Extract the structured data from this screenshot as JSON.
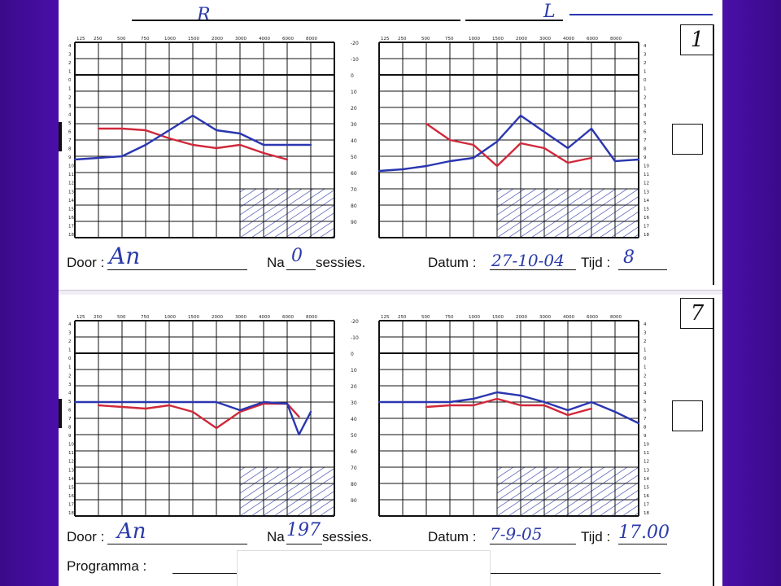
{
  "side_labels": {
    "top": "R",
    "top_right": "L"
  },
  "colors": {
    "right_ear": "#d0283a",
    "left_ear": "#2a36b0",
    "hatch": "#3a4ab0"
  },
  "frequencies": [
    "125",
    "250",
    "500",
    "750",
    "1000",
    "1500",
    "2000",
    "3000",
    "4000",
    "6000",
    "8000"
  ],
  "db_scale": [
    "-20",
    "-10",
    "0",
    "10",
    "20",
    "30",
    "40",
    "50",
    "60",
    "70",
    "80",
    "90"
  ],
  "hearing_scale": [
    "4",
    "3",
    "2",
    "1",
    "0",
    "1",
    "2",
    "3",
    "4",
    "5",
    "6",
    "7",
    "8",
    "9",
    "10",
    "11",
    "12",
    "13",
    "14",
    "15",
    "16",
    "17",
    "18"
  ],
  "cards": [
    {
      "number": "1",
      "door_label": "Door :",
      "door_value": "An",
      "na_label": "Na",
      "na_value": "0",
      "sessies_label": "sessies.",
      "datum_label": "Datum :",
      "datum_value": "27-10-04",
      "tijd_label": "Tijd :",
      "tijd_value": "8",
      "charts": [
        {
          "side": "right",
          "red": [
            [
              1,
              5.3
            ],
            [
              2,
              5.3
            ],
            [
              3,
              5.4
            ],
            [
              4,
              5.9
            ],
            [
              5,
              6.3
            ],
            [
              6,
              6.5
            ],
            [
              7,
              6.3
            ],
            [
              8,
              6.8
            ],
            [
              9,
              7.2
            ]
          ],
          "blue": [
            [
              0,
              7.2
            ],
            [
              1,
              7.1
            ],
            [
              2,
              7.0
            ],
            [
              3,
              6.3
            ],
            [
              4,
              5.4
            ],
            [
              5,
              4.5
            ],
            [
              6,
              5.4
            ],
            [
              7,
              5.6
            ],
            [
              8,
              6.3
            ],
            [
              9,
              6.3
            ],
            [
              10,
              6.3
            ]
          ]
        },
        {
          "side": "left",
          "red": [
            [
              2,
              5.0
            ],
            [
              3,
              6.0
            ],
            [
              4,
              6.3
            ],
            [
              5,
              7.6
            ],
            [
              6,
              6.2
            ],
            [
              7,
              6.5
            ],
            [
              8,
              7.4
            ],
            [
              9,
              7.1
            ]
          ],
          "blue": [
            [
              0,
              7.9
            ],
            [
              1,
              7.8
            ],
            [
              2,
              7.6
            ],
            [
              3,
              7.3
            ],
            [
              4,
              7.1
            ],
            [
              5,
              6.1
            ],
            [
              6,
              4.5
            ],
            [
              7,
              5.5
            ],
            [
              8,
              6.5
            ],
            [
              9,
              5.3
            ],
            [
              10,
              7.3
            ],
            [
              11,
              7.2
            ]
          ]
        }
      ]
    },
    {
      "number": "7",
      "door_label": "Door :",
      "door_value": "An",
      "na_label": "Na",
      "na_value": "197",
      "sessies_label": "sessies.",
      "datum_label": "Datum :",
      "datum_value": "7-9-05",
      "tijd_label": "Tijd :",
      "tijd_value": "17.00",
      "programma_label": "Programma :",
      "charts": [
        {
          "side": "right",
          "red": [
            [
              1,
              5.2
            ],
            [
              2,
              5.3
            ],
            [
              3,
              5.4
            ],
            [
              4,
              5.2
            ],
            [
              5,
              5.6
            ],
            [
              6,
              6.6
            ],
            [
              7,
              5.6
            ],
            [
              8,
              5.1
            ],
            [
              9,
              5.1
            ],
            [
              9.5,
              5.9
            ]
          ],
          "blue": [
            [
              0,
              5.0
            ],
            [
              1,
              5.0
            ],
            [
              2,
              5.0
            ],
            [
              3,
              5.0
            ],
            [
              4,
              5.0
            ],
            [
              5,
              5.0
            ],
            [
              6,
              5.0
            ],
            [
              7,
              5.5
            ],
            [
              8,
              5.0
            ],
            [
              9,
              5.1
            ],
            [
              9.5,
              7.0
            ],
            [
              10,
              5.6
            ]
          ]
        },
        {
          "side": "left",
          "red": [
            [
              2,
              5.3
            ],
            [
              3,
              5.2
            ],
            [
              4,
              5.2
            ],
            [
              5,
              4.8
            ],
            [
              6,
              5.2
            ],
            [
              7,
              5.2
            ],
            [
              8,
              5.8
            ],
            [
              9,
              5.4
            ]
          ],
          "blue": [
            [
              0,
              5.0
            ],
            [
              1,
              5.0
            ],
            [
              2,
              5.0
            ],
            [
              3,
              5.0
            ],
            [
              4,
              4.8
            ],
            [
              5,
              4.4
            ],
            [
              6,
              4.6
            ],
            [
              7,
              5.0
            ],
            [
              8,
              5.5
            ],
            [
              9,
              5.0
            ],
            [
              10,
              5.6
            ],
            [
              11,
              6.3
            ]
          ]
        }
      ]
    }
  ]
}
